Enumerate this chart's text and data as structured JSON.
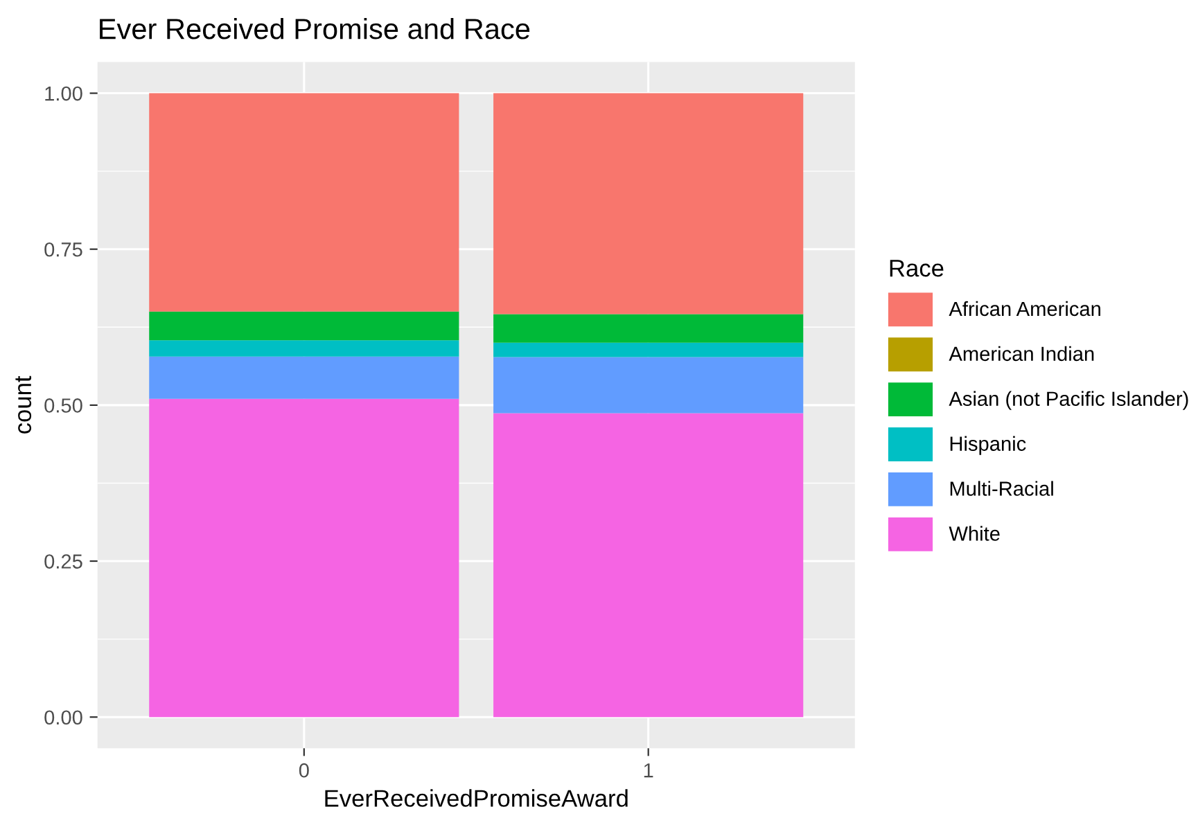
{
  "chart_data": {
    "type": "bar",
    "title": "Ever Received Promise and Race",
    "xlabel": "EverReceivedPromiseAward",
    "ylabel": "count",
    "legend_title": "Race",
    "categories": [
      "0",
      "1"
    ],
    "series": [
      {
        "name": "White",
        "color": "#f564e3",
        "values": [
          0.51,
          0.487
        ]
      },
      {
        "name": "Multi-Racial",
        "color": "#619cff",
        "values": [
          0.068,
          0.09
        ]
      },
      {
        "name": "Hispanic",
        "color": "#00bfc4",
        "values": [
          0.026,
          0.023
        ]
      },
      {
        "name": "Asian (not Pacific Islander)",
        "color": "#00ba38",
        "values": [
          0.046,
          0.046
        ]
      },
      {
        "name": "American Indian",
        "color": "#b79f00",
        "values": [
          0,
          0
        ]
      },
      {
        "name": "African American",
        "color": "#f8766d",
        "values": [
          0.35,
          0.354
        ]
      }
    ],
    "stacked": true,
    "ylim": [
      -0.05,
      1.05
    ],
    "yticks": [
      {
        "value": 0,
        "label": "0.00"
      },
      {
        "value": 0.25,
        "label": "0.25"
      },
      {
        "value": 0.5,
        "label": "0.50"
      },
      {
        "value": 0.75,
        "label": "0.75"
      },
      {
        "value": 1,
        "label": "1.00"
      }
    ],
    "grid": true,
    "legend": "right"
  }
}
